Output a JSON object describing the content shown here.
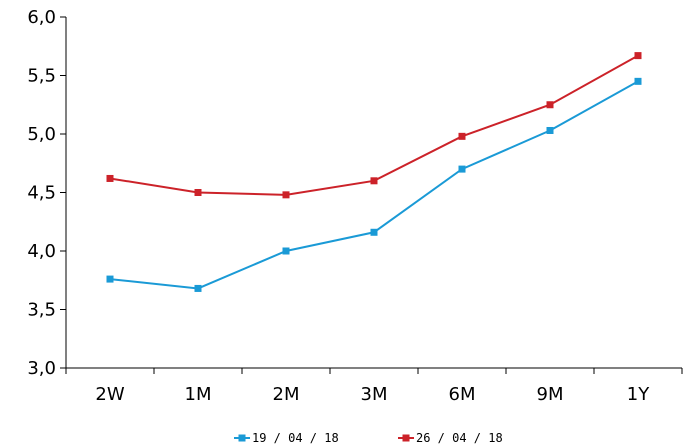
{
  "chart_data": {
    "type": "line",
    "categories": [
      "2W",
      "1M",
      "2M",
      "3M",
      "6M",
      "9M",
      "1Y"
    ],
    "ylim": [
      3.0,
      6.0
    ],
    "yticks": [
      "3,0",
      "3,5",
      "4,0",
      "4,5",
      "5,0",
      "5,5",
      "6,0"
    ],
    "grid": false,
    "legend_position": "bottom",
    "series": [
      {
        "name": "19 / 04 / 18",
        "color": "#1a9ad6",
        "values": [
          3.76,
          3.68,
          4.0,
          4.16,
          4.7,
          5.03,
          5.45
        ]
      },
      {
        "name": "26 / 04 / 18",
        "color": "#cc2229",
        "values": [
          4.62,
          4.5,
          4.48,
          4.6,
          4.98,
          5.25,
          5.67
        ]
      }
    ]
  }
}
